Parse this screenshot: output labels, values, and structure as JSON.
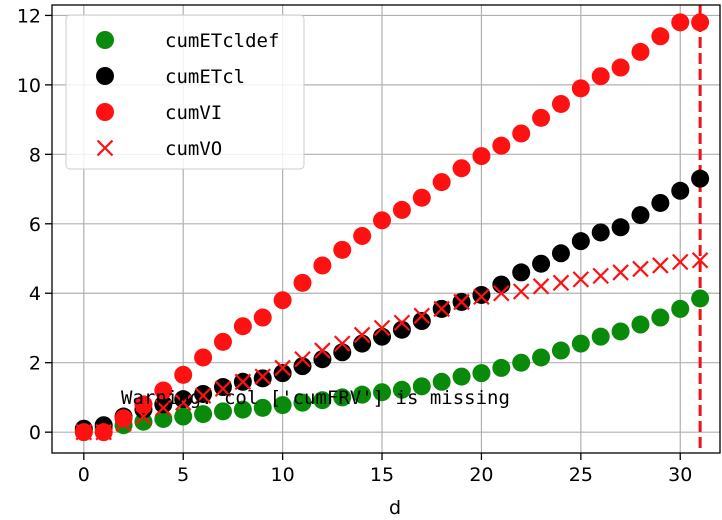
{
  "chart_data": {
    "type": "scatter",
    "xlabel": "d",
    "ylabel": "",
    "xlim": [
      -1.6,
      32.0
    ],
    "ylim": [
      -0.6,
      12.3
    ],
    "xticks": [
      0,
      5,
      10,
      15,
      20,
      25,
      30
    ],
    "yticks": [
      0,
      2,
      4,
      6,
      8,
      10,
      12
    ],
    "grid": true,
    "legend_position": "upper-left",
    "annotation": "Warning: col ['cumFRV'] is missing",
    "vline": {
      "x": 31,
      "color": "#ee1111",
      "style": "dashed"
    },
    "x": [
      0,
      1,
      2,
      3,
      4,
      5,
      6,
      7,
      8,
      9,
      10,
      11,
      12,
      13,
      14,
      15,
      16,
      17,
      18,
      19,
      20,
      21,
      22,
      23,
      24,
      25,
      26,
      27,
      28,
      29,
      30,
      31
    ],
    "series": [
      {
        "name": "cumETcldef",
        "marker": "circle",
        "color": "#0a8a0a",
        "values": [
          0.05,
          0.1,
          0.2,
          0.3,
          0.38,
          0.45,
          0.52,
          0.6,
          0.65,
          0.7,
          0.78,
          0.85,
          0.92,
          1.0,
          1.08,
          1.15,
          1.22,
          1.32,
          1.45,
          1.6,
          1.7,
          1.85,
          2.0,
          2.15,
          2.35,
          2.55,
          2.75,
          2.9,
          3.1,
          3.3,
          3.55,
          3.85
        ]
      },
      {
        "name": "cumETcl",
        "marker": "circle",
        "color": "#000000",
        "values": [
          0.1,
          0.2,
          0.45,
          0.65,
          0.8,
          0.95,
          1.1,
          1.3,
          1.45,
          1.55,
          1.7,
          1.9,
          2.1,
          2.3,
          2.55,
          2.75,
          2.95,
          3.2,
          3.55,
          3.75,
          3.95,
          4.25,
          4.6,
          4.85,
          5.15,
          5.5,
          5.75,
          5.9,
          6.25,
          6.6,
          6.95,
          7.3
        ]
      },
      {
        "name": "cumVI",
        "marker": "circle",
        "color": "#ff1111",
        "values": [
          0.0,
          0.0,
          0.4,
          0.8,
          1.2,
          1.65,
          2.15,
          2.6,
          3.05,
          3.3,
          3.8,
          4.3,
          4.8,
          5.25,
          5.65,
          6.1,
          6.4,
          6.75,
          7.2,
          7.6,
          7.95,
          8.25,
          8.6,
          9.05,
          9.45,
          9.9,
          10.25,
          10.5,
          10.95,
          11.4,
          11.8,
          11.8
        ]
      },
      {
        "name": "cumVO",
        "marker": "x",
        "color": "#ff1111",
        "values": [
          0.0,
          0.0,
          0.25,
          0.45,
          0.7,
          0.85,
          1.05,
          1.25,
          1.45,
          1.6,
          1.85,
          2.1,
          2.35,
          2.55,
          2.8,
          3.0,
          3.15,
          3.35,
          3.55,
          3.75,
          3.9,
          4.0,
          4.05,
          4.2,
          4.3,
          4.4,
          4.5,
          4.6,
          4.7,
          4.8,
          4.9,
          4.95
        ]
      }
    ]
  }
}
